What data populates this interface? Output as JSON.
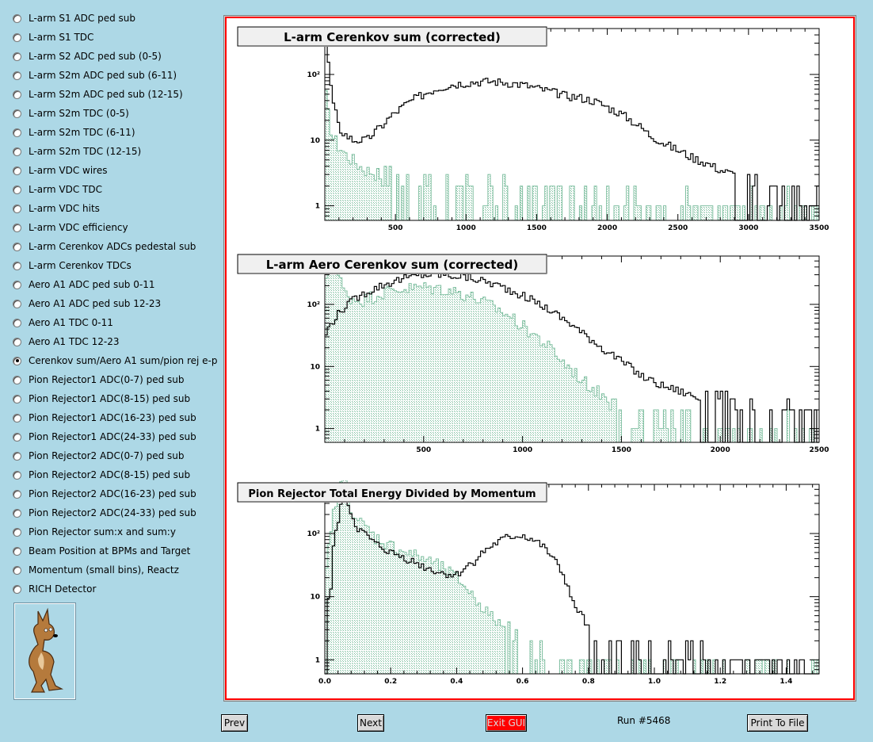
{
  "sidebar": {
    "items": [
      {
        "label": "L-arm S1 ADC ped sub",
        "checked": false
      },
      {
        "label": "L-arm S1 TDC",
        "checked": false
      },
      {
        "label": "L-arm S2 ADC ped sub (0-5)",
        "checked": false
      },
      {
        "label": "L-arm S2m ADC ped sub (6-11)",
        "checked": false
      },
      {
        "label": "L-arm S2m ADC ped sub (12-15)",
        "checked": false
      },
      {
        "label": "L-arm S2m TDC (0-5)",
        "checked": false
      },
      {
        "label": "L-arm S2m TDC (6-11)",
        "checked": false
      },
      {
        "label": "L-arm S2m TDC (12-15)",
        "checked": false
      },
      {
        "label": "L-arm VDC wires",
        "checked": false
      },
      {
        "label": "L-arm VDC TDC",
        "checked": false
      },
      {
        "label": "L-arm VDC hits",
        "checked": false
      },
      {
        "label": "L-arm VDC efficiency",
        "checked": false
      },
      {
        "label": "L-arm Cerenkov ADCs pedestal sub",
        "checked": false
      },
      {
        "label": "L-arm Cerenkov TDCs",
        "checked": false
      },
      {
        "label": "Aero A1 ADC ped sub 0-11",
        "checked": false
      },
      {
        "label": "Aero A1 ADC ped sub 12-23",
        "checked": false
      },
      {
        "label": "Aero A1 TDC 0-11",
        "checked": false
      },
      {
        "label": "Aero A1 TDC 12-23",
        "checked": false
      },
      {
        "label": "Cerenkov sum/Aero A1 sum/pion rej e-p",
        "checked": true
      },
      {
        "label": "Pion Rejector1 ADC(0-7) ped sub",
        "checked": false
      },
      {
        "label": "Pion Rejector1 ADC(8-15) ped sub",
        "checked": false
      },
      {
        "label": "Pion Rejector1 ADC(16-23) ped sub",
        "checked": false
      },
      {
        "label": "Pion Rejector1 ADC(24-33) ped sub",
        "checked": false
      },
      {
        "label": "Pion Rejector2 ADC(0-7) ped sub",
        "checked": false
      },
      {
        "label": "Pion Rejector2 ADC(8-15) ped sub",
        "checked": false
      },
      {
        "label": "Pion Rejector2 ADC(16-23) ped sub",
        "checked": false
      },
      {
        "label": "Pion Rejector2 ADC(24-33) ped sub",
        "checked": false
      },
      {
        "label": "Pion Rejector sum:x and sum:y",
        "checked": false
      },
      {
        "label": "Beam Position at BPMs and Target",
        "checked": false
      },
      {
        "label": "Momentum (small bins), Reactz",
        "checked": false
      },
      {
        "label": "RICH Detector",
        "checked": false
      }
    ],
    "logo_icon": "coyote-logo-icon"
  },
  "buttons": {
    "prev": "Prev",
    "next": "Next",
    "exit": "Exit GUI",
    "print": "Print To File"
  },
  "run_label": "Run #5468",
  "colors": {
    "background": "#add8e6",
    "frame_border": "#ff0000",
    "hist_main": "#000000",
    "hist_fill": "#7fbfa0",
    "exit_button": "#ff0000"
  },
  "chart_data": [
    {
      "type": "histogram",
      "title": "L-arm Cerenkov sum (corrected)",
      "log_y": true,
      "xlim": [
        0,
        3500
      ],
      "ylim": [
        0.6,
        500
      ],
      "x_ticks": [
        500,
        1000,
        1500,
        2000,
        2500,
        3000,
        3500
      ],
      "y_ticks": [
        {
          "v": 1,
          "label": "1"
        },
        {
          "v": 10,
          "label": "10"
        },
        {
          "v": 100,
          "label": "10²"
        }
      ],
      "series": [
        {
          "style": "line",
          "x": [
            0,
            25,
            50,
            100,
            150,
            200,
            300,
            400,
            500,
            600,
            700,
            800,
            900,
            1000,
            1100,
            1200,
            1300,
            1400,
            1500,
            1600,
            1700,
            1800,
            1900,
            2000,
            2100,
            2200,
            2300,
            2400,
            2500,
            2600,
            2700,
            2800,
            2900,
            3000,
            3100,
            3200,
            3300,
            3400,
            3500
          ],
          "y": [
            400,
            150,
            40,
            15,
            12,
            10,
            10,
            16,
            26,
            38,
            50,
            62,
            70,
            75,
            78,
            78,
            75,
            70,
            62,
            55,
            48,
            45,
            40,
            32,
            25,
            18,
            12,
            9,
            7,
            5.5,
            4.5,
            3.5,
            3,
            2.5,
            2,
            1.8,
            1.5,
            1.2,
            1.0
          ]
        },
        {
          "style": "fill",
          "x": [
            0,
            25,
            50,
            100,
            150,
            200,
            250,
            300,
            400,
            500,
            700,
            900,
            1100,
            1300,
            1500,
            1700,
            1900,
            2100,
            2300,
            2500,
            2700,
            2900,
            3100,
            3300
          ],
          "y": [
            60,
            25,
            12,
            8,
            6,
            5,
            4,
            3.5,
            3,
            2.5,
            2.2,
            2.0,
            2.0,
            2.0,
            1.8,
            1.6,
            1.5,
            1.3,
            1.2,
            1.1,
            1.0,
            1.0,
            1.0,
            1.0
          ]
        }
      ]
    },
    {
      "type": "histogram",
      "title": "L-arm Aero Cerenkov sum (corrected)",
      "log_y": true,
      "xlim": [
        0,
        2500
      ],
      "ylim": [
        0.6,
        600
      ],
      "x_ticks": [
        500,
        1000,
        1500,
        2000,
        2500
      ],
      "y_ticks": [
        {
          "v": 1,
          "label": "1"
        },
        {
          "v": 10,
          "label": "10"
        },
        {
          "v": 100,
          "label": "10²"
        }
      ],
      "series": [
        {
          "style": "line",
          "x": [
            0,
            50,
            100,
            150,
            200,
            250,
            300,
            400,
            500,
            600,
            700,
            800,
            900,
            1000,
            1100,
            1200,
            1300,
            1400,
            1500,
            1600,
            1700,
            1800,
            1900,
            2000,
            2100,
            2200,
            2300,
            2400,
            2500
          ],
          "y": [
            30,
            60,
            90,
            120,
            150,
            180,
            210,
            260,
            300,
            300,
            280,
            240,
            190,
            140,
            95,
            60,
            35,
            20,
            12,
            7,
            5,
            4,
            3,
            2.5,
            2,
            2,
            2,
            1.8,
            1.6
          ]
        },
        {
          "style": "fill",
          "x": [
            0,
            25,
            50,
            75,
            100,
            150,
            200,
            250,
            300,
            400,
            500,
            600,
            700,
            800,
            900,
            1000,
            1100,
            1200,
            1300,
            1400,
            1500,
            1600,
            1700,
            1800,
            1900,
            2000,
            2100,
            2200,
            2300,
            2400
          ],
          "y": [
            150,
            420,
            380,
            260,
            150,
            120,
            120,
            140,
            160,
            180,
            190,
            180,
            150,
            110,
            75,
            45,
            25,
            12,
            6,
            3.5,
            2.2,
            1.5,
            1.3,
            1.2,
            1.1,
            1.0,
            1.0,
            1.0,
            1.0,
            1.0
          ]
        }
      ]
    },
    {
      "type": "histogram",
      "title": "Pion Rejector Total Energy Divided by Momentum",
      "log_y": true,
      "xlim": [
        0,
        1.5
      ],
      "ylim": [
        0.6,
        600
      ],
      "x_ticks": [
        0.0,
        0.2,
        0.4,
        0.6,
        0.8,
        1.0,
        1.2,
        1.4
      ],
      "y_ticks": [
        {
          "v": 1,
          "label": "1"
        },
        {
          "v": 10,
          "label": "10"
        },
        {
          "v": 100,
          "label": "10²"
        }
      ],
      "series": [
        {
          "style": "line",
          "x": [
            0,
            0.02,
            0.04,
            0.05,
            0.06,
            0.07,
            0.08,
            0.1,
            0.15,
            0.2,
            0.25,
            0.3,
            0.35,
            0.4,
            0.45,
            0.5,
            0.55,
            0.6,
            0.65,
            0.7,
            0.75,
            0.8,
            0.85,
            0.9,
            1.0,
            1.1,
            1.2
          ],
          "y": [
            0,
            15,
            150,
            300,
            380,
            320,
            200,
            120,
            70,
            50,
            40,
            30,
            24,
            22,
            35,
            60,
            85,
            95,
            70,
            35,
            8,
            3,
            2,
            1.5,
            1.3,
            1.2,
            1.0
          ]
        },
        {
          "style": "fill",
          "x": [
            0,
            0.02,
            0.04,
            0.05,
            0.06,
            0.07,
            0.08,
            0.1,
            0.15,
            0.2,
            0.25,
            0.3,
            0.35,
            0.4,
            0.45,
            0.5,
            0.55,
            0.6,
            0.65,
            0.7
          ],
          "y": [
            5,
            100,
            450,
            800,
            700,
            450,
            260,
            160,
            90,
            65,
            50,
            40,
            30,
            20,
            10,
            5,
            3,
            2,
            1.5,
            1.0
          ]
        }
      ]
    }
  ]
}
